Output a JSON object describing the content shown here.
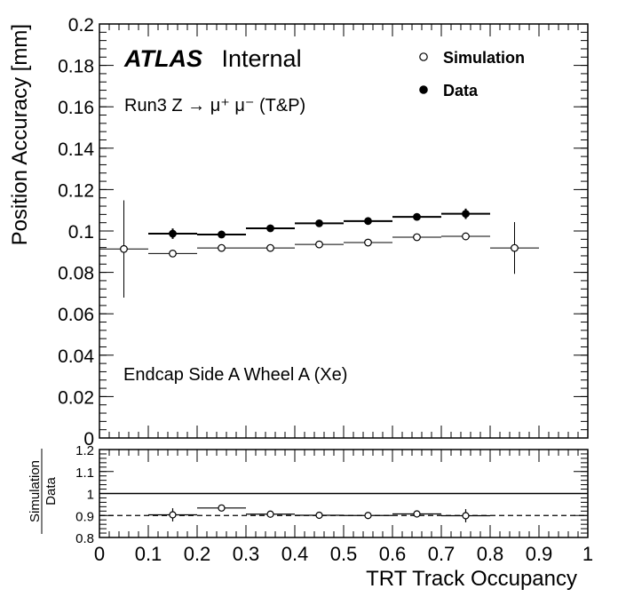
{
  "labels": {
    "experiment": "ATLAS",
    "status": "Internal",
    "process": "Run3 Z → μ⁺ μ⁻ (T&P)",
    "region": "Endcap Side A Wheel A (Xe)"
  },
  "chart_data": [
    {
      "type": "scatter",
      "xlabel": "",
      "ylabel": "Position Accuracy [mm]",
      "xlim": [
        0,
        1
      ],
      "ylim": [
        0,
        0.2
      ],
      "y_ticks": [
        "0",
        "0.02",
        "0.04",
        "0.06",
        "0.08",
        "0.1",
        "0.12",
        "0.14",
        "0.16",
        "0.18",
        "0.2"
      ],
      "legend": {
        "placement": "top-right"
      },
      "series": [
        {
          "name": "Simulation",
          "marker": "open-circle",
          "color": "#000000",
          "x": [
            0.05,
            0.15,
            0.25,
            0.35,
            0.45,
            0.55,
            0.65,
            0.75,
            0.85
          ],
          "xerr": [
            0.05,
            0.05,
            0.05,
            0.05,
            0.05,
            0.05,
            0.05,
            0.05,
            0.05
          ],
          "y": [
            0.0913,
            0.0891,
            0.0918,
            0.0918,
            0.0935,
            0.0944,
            0.097,
            0.0974,
            0.0918
          ],
          "yerr": [
            0.0235,
            0.0005,
            0.0005,
            0.0005,
            0.0005,
            0.0005,
            0.0005,
            0.0005,
            0.0125
          ]
        },
        {
          "name": "Data",
          "marker": "filled-circle",
          "color": "#000000",
          "x": [
            0.15,
            0.25,
            0.35,
            0.45,
            0.55,
            0.65,
            0.75
          ],
          "xerr": [
            0.05,
            0.05,
            0.05,
            0.05,
            0.05,
            0.05,
            0.05
          ],
          "y": [
            0.0987,
            0.0983,
            0.1013,
            0.1037,
            0.1048,
            0.1068,
            0.1083
          ],
          "yerr": [
            0.0025,
            0.0013,
            0.0013,
            0.0013,
            0.0013,
            0.0013,
            0.0025
          ]
        }
      ]
    },
    {
      "type": "scatter",
      "xlabel": "TRT Track Occupancy",
      "ylabel_numerator": "Simulation",
      "ylabel_denominator": "Data",
      "xlim": [
        0,
        1
      ],
      "ylim": [
        0.8,
        1.2
      ],
      "x_ticks": [
        "0",
        "0.1",
        "0.2",
        "0.3",
        "0.4",
        "0.5",
        "0.6",
        "0.7",
        "0.8",
        "0.9",
        "1"
      ],
      "y_ticks": [
        "0.8",
        "0.9",
        "1",
        "1.1",
        "1.2"
      ],
      "reference_lines": [
        {
          "y": 1.0,
          "style": "solid"
        },
        {
          "y": 0.9,
          "style": "dashed"
        }
      ],
      "series": [
        {
          "name": "Simulation/Data",
          "marker": "open-circle",
          "color": "#000000",
          "x": [
            0.15,
            0.25,
            0.35,
            0.45,
            0.55,
            0.65,
            0.75
          ],
          "xerr": [
            0.05,
            0.05,
            0.05,
            0.05,
            0.05,
            0.05,
            0.05
          ],
          "y": [
            0.903,
            0.934,
            0.906,
            0.901,
            0.9,
            0.907,
            0.899
          ],
          "yerr": [
            0.03,
            0.005,
            0.005,
            0.005,
            0.005,
            0.005,
            0.03
          ]
        }
      ]
    }
  ]
}
